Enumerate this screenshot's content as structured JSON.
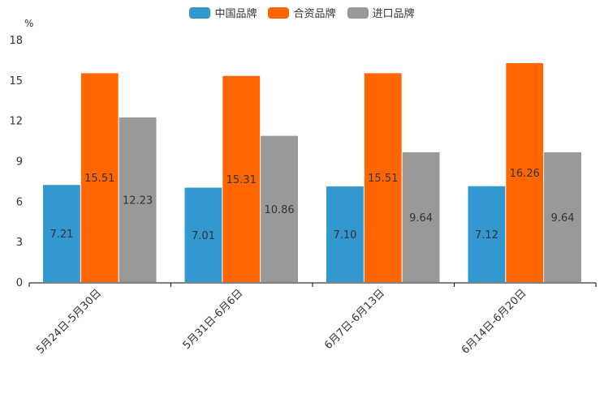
{
  "chart_data": {
    "type": "bar",
    "ylabel": "%",
    "ylim": [
      0,
      18
    ],
    "yticks": [
      0,
      3,
      6,
      9,
      12,
      15,
      18
    ],
    "legend_position": "top-center",
    "categories": [
      "5月24日-5月30日",
      "5月31日-6月6日",
      "6月7日-6月13日",
      "6月14日-6月20日"
    ],
    "series": [
      {
        "name": "中国品牌",
        "color": "#3398d0",
        "values": [
          7.21,
          7.01,
          7.1,
          7.12
        ],
        "labels": [
          "7.21",
          "7.01",
          "7.10",
          "7.12"
        ]
      },
      {
        "name": "合资品牌",
        "color": "#ff6600",
        "values": [
          15.51,
          15.31,
          15.51,
          16.26
        ],
        "labels": [
          "15.51",
          "15.31",
          "15.51",
          "16.26"
        ]
      },
      {
        "name": "进口品牌",
        "color": "#999999",
        "values": [
          12.23,
          10.86,
          9.64,
          9.64
        ],
        "labels": [
          "12.23",
          "10.86",
          "9.64",
          "9.64"
        ]
      }
    ]
  }
}
